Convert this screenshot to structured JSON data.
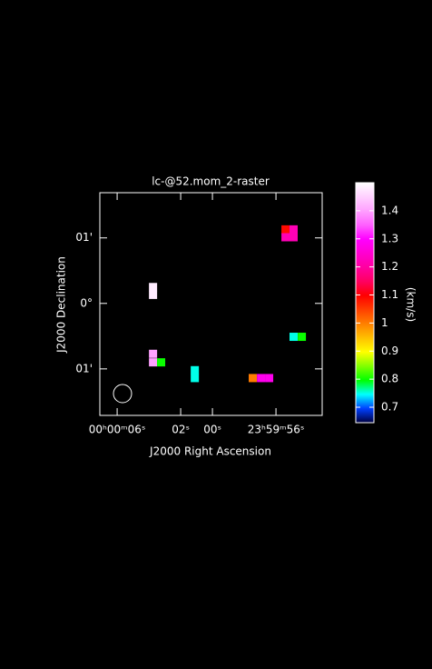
{
  "chart_data": {
    "type": "raster",
    "title": "lc-@52.mom_2-raster",
    "xlabel": "J2000 Right Ascension",
    "ylabel": "J2000 Declination",
    "xlim": [
      7.09,
      -6.91
    ],
    "xticks": [
      {
        "value": 6,
        "label": "00ʰ00ᵐ06ˢ"
      },
      {
        "value": 2,
        "label": "02ˢ"
      },
      {
        "value": 0,
        "label": "00ˢ"
      },
      {
        "value": -4,
        "label": "23ʰ59ᵐ56ˢ"
      }
    ],
    "ylim": [
      -1.71,
      1.69
    ],
    "yticks": [
      {
        "value": 1,
        "label": "01'"
      },
      {
        "value": 0,
        "label": "0°"
      },
      {
        "value": -1,
        "label": "01'"
      }
    ],
    "colorbar": {
      "label": "(km/s)",
      "lim": [
        0.645,
        1.5
      ],
      "ticks": [
        1.4,
        1.3,
        1.2,
        1.1,
        1,
        0.9,
        0.8,
        0.7
      ],
      "colors": [
        "#000040",
        "#0040ff",
        "#00ffff",
        "#00ff00",
        "#80ff00",
        "#ffff00",
        "#ffc000",
        "#ff8000",
        "#ff4000",
        "#ff0000",
        "#ff0060",
        "#ff00a0",
        "#ff00d0",
        "#ff00ff",
        "#ff60ff",
        "#ffa0ff",
        "#ffd0ff",
        "#ffffff"
      ]
    },
    "pixels": [
      {
        "x": 3.74,
        "y": 0.25,
        "value": 1.48
      },
      {
        "x": 3.74,
        "y": 0.13,
        "value": 1.48
      },
      {
        "x": 3.74,
        "y": -0.77,
        "value": 1.4
      },
      {
        "x": 3.74,
        "y": -0.9,
        "value": 1.4
      },
      {
        "x": 3.23,
        "y": -0.9,
        "value": 0.8
      },
      {
        "x": 1.11,
        "y": -1.02,
        "value": 0.75
      },
      {
        "x": 1.11,
        "y": -1.14,
        "value": 0.75
      },
      {
        "x": -2.54,
        "y": -1.14,
        "value": 1.0
      },
      {
        "x": -3.06,
        "y": -1.14,
        "value": 1.28
      },
      {
        "x": -3.57,
        "y": -1.14,
        "value": 1.28
      },
      {
        "x": -4.6,
        "y": 1.13,
        "value": 1.09
      },
      {
        "x": -5.11,
        "y": 1.13,
        "value": 1.22
      },
      {
        "x": -4.6,
        "y": 1.01,
        "value": 1.22
      },
      {
        "x": -5.11,
        "y": 1.01,
        "value": 1.22
      },
      {
        "x": -5.11,
        "y": -0.51,
        "value": 0.75
      },
      {
        "x": -5.63,
        "y": -0.51,
        "value": 0.8
      }
    ]
  }
}
